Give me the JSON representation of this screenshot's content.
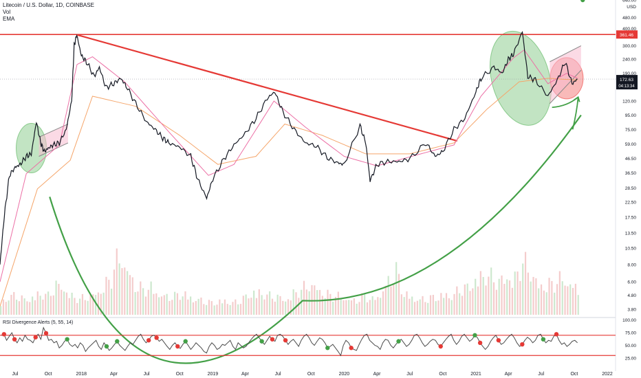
{
  "legend": {
    "title": "Litecoin / U.S. Dollar, 1D, COINBASE",
    "vol": "Vol",
    "ema": "EMA"
  },
  "rsi_title": "RSI Divergence Alerts (5, 55, 14)",
  "currency": "USD",
  "colors": {
    "price": "#131722",
    "resistance": "#e53935",
    "trendline": "#e53935",
    "cup_arc": "#43a047",
    "ema_fast": "#ec6fa5",
    "ema_slow": "#f5a56a",
    "volume": "#f3c7c7",
    "price_badge": "#131722",
    "resistance_badge": "#e53935"
  },
  "chart_data": [
    {
      "type": "line",
      "scale": "log",
      "yticks": [
        "640.00",
        "480.00",
        "400.00",
        "300.00",
        "240.00",
        "190.00",
        "150.00",
        "120.00",
        "95.00",
        "75.00",
        "59.00",
        "46.50",
        "36.50",
        "28.50",
        "22.50",
        "17.50",
        "13.50",
        "10.50",
        "8.00",
        "6.00",
        "4.80",
        "3.80"
      ],
      "ylim": [
        3.4,
        640
      ],
      "xticks": [
        "Jul",
        "Oct",
        "2018",
        "Apr",
        "Jul",
        "Oct",
        "2019",
        "Apr",
        "Jul",
        "Oct",
        "2020",
        "Apr",
        "Jul",
        "Oct",
        "2021",
        "Apr",
        "Jul",
        "Oct",
        "2022"
      ],
      "xlim": [
        "2017-05-20",
        "2022-01-20"
      ],
      "price_series": {
        "x": [
          "2017-05-20",
          "2017-06-01",
          "2017-06-15",
          "2017-07-01",
          "2017-07-15",
          "2017-08-01",
          "2017-08-15",
          "2017-08-29",
          "2017-09-10",
          "2017-09-20",
          "2017-10-01",
          "2017-10-15",
          "2017-11-01",
          "2017-11-20",
          "2017-12-05",
          "2017-12-12",
          "2017-12-19",
          "2018-01-01",
          "2018-01-15",
          "2018-02-06",
          "2018-02-20",
          "2018-03-10",
          "2018-04-01",
          "2018-04-20",
          "2018-05-05",
          "2018-06-01",
          "2018-07-01",
          "2018-07-25",
          "2018-08-15",
          "2018-09-01",
          "2018-10-01",
          "2018-11-01",
          "2018-11-20",
          "2018-12-15",
          "2019-01-01",
          "2019-02-01",
          "2019-03-01",
          "2019-04-01",
          "2019-05-01",
          "2019-06-01",
          "2019-06-22",
          "2019-07-15",
          "2019-08-15",
          "2019-09-15",
          "2019-10-15",
          "2019-11-15",
          "2019-12-15",
          "2020-01-01",
          "2020-02-14",
          "2020-03-01",
          "2020-03-13",
          "2020-04-01",
          "2020-05-01",
          "2020-06-01",
          "2020-07-01",
          "2020-08-15",
          "2020-09-10",
          "2020-10-01",
          "2020-11-01",
          "2020-12-01",
          "2021-01-01",
          "2021-01-15",
          "2021-02-20",
          "2021-03-15",
          "2021-04-01",
          "2021-04-15",
          "2021-05-10",
          "2021-05-25",
          "2021-06-15",
          "2021-07-20",
          "2021-08-15",
          "2021-09-06",
          "2021-09-25",
          "2021-10-10"
        ],
        "y": [
          8,
          18,
          35,
          40,
          42,
          48,
          50,
          85,
          60,
          52,
          55,
          58,
          60,
          75,
          120,
          300,
          360,
          255,
          230,
          180,
          210,
          150,
          160,
          175,
          155,
          115,
          85,
          75,
          65,
          60,
          56,
          48,
          33,
          24,
          33,
          46,
          58,
          70,
          90,
          125,
          140,
          100,
          75,
          60,
          57,
          47,
          43,
          42,
          80,
          60,
          32,
          42,
          44,
          44,
          46,
          60,
          48,
          52,
          75,
          90,
          140,
          175,
          210,
          190,
          240,
          260,
          380,
          180,
          170,
          130,
          170,
          230,
          160,
          172.63
        ]
      },
      "ema_fast_series": {
        "x": [
          "2017-05-20",
          "2017-08-01",
          "2017-11-01",
          "2017-12-20",
          "2018-02-01",
          "2018-05-01",
          "2018-09-01",
          "2018-12-20",
          "2019-03-01",
          "2019-06-20",
          "2019-09-15",
          "2020-01-01",
          "2020-04-01",
          "2020-08-01",
          "2020-11-01",
          "2021-01-15",
          "2021-04-15",
          "2021-05-15",
          "2021-07-20",
          "2021-09-10",
          "2021-10-10"
        ],
        "y": [
          6,
          36,
          58,
          220,
          250,
          165,
          72,
          35,
          42,
          120,
          78,
          48,
          41,
          50,
          58,
          130,
          245,
          280,
          160,
          190,
          175
        ]
      },
      "ema_slow_series": {
        "x": [
          "2017-05-20",
          "2017-09-01",
          "2017-12-01",
          "2018-02-01",
          "2018-06-01",
          "2018-10-01",
          "2019-01-15",
          "2019-05-01",
          "2019-07-20",
          "2019-11-01",
          "2020-03-01",
          "2020-07-01",
          "2020-11-01",
          "2021-02-01",
          "2021-05-01",
          "2021-07-20",
          "2021-10-10"
        ],
        "y": [
          4,
          28,
          45,
          130,
          110,
          68,
          42,
          48,
          82,
          68,
          50,
          50,
          60,
          105,
          165,
          175,
          170
        ]
      },
      "horizontal_lines": [
        {
          "label": "361.46",
          "value": 361.46
        },
        {
          "label": "172.63",
          "value": 172.63
        }
      ],
      "price_time_label": "04:13:34",
      "trendlines": [
        {
          "from": [
            "2017-12-19",
            360
          ],
          "to": [
            "2020-11-10",
            62
          ]
        }
      ],
      "channels": [
        {
          "lower": [
            [
              "2017-09-05",
              48
            ],
            [
              "2017-11-25",
              60
            ]
          ],
          "upper": [
            [
              "2017-09-05",
              66
            ],
            [
              "2017-11-25",
              82
            ]
          ]
        },
        {
          "lower": [
            [
              "2021-07-25",
              115
            ],
            [
              "2021-10-20",
              200
            ]
          ],
          "upper": [
            [
              "2021-07-25",
              230
            ],
            [
              "2021-10-20",
              300
            ]
          ]
        }
      ],
      "ellipses": [
        {
          "center": [
            "2017-08-15",
            55
          ],
          "color": "green"
        },
        {
          "center": [
            "2021-05-05",
            175
          ],
          "color": "green"
        },
        {
          "center": [
            "2021-09-10",
            175
          ],
          "color": "red"
        }
      ],
      "volume": [
        0.2,
        0.3,
        0.3,
        0.25,
        0.3,
        0.35,
        0.3,
        0.5,
        0.45,
        0.3,
        0.25,
        0.3,
        0.35,
        0.45,
        0.6,
        1.0,
        0.75,
        0.5,
        0.4,
        0.45,
        0.35,
        0.3,
        0.3,
        0.35,
        0.3,
        0.25,
        0.2,
        0.2,
        0.25,
        0.2,
        0.2,
        0.3,
        0.4,
        0.35,
        0.3,
        0.3,
        0.25,
        0.35,
        0.4,
        0.5,
        0.45,
        0.35,
        0.3,
        0.3,
        0.25,
        0.25,
        0.3,
        0.25,
        0.35,
        0.55,
        0.7,
        0.35,
        0.3,
        0.25,
        0.25,
        0.3,
        0.35,
        0.3,
        0.4,
        0.45,
        0.6,
        0.65,
        0.6,
        0.55,
        0.65,
        0.6,
        0.85,
        0.7,
        0.5,
        0.5,
        0.5,
        0.6,
        0.5,
        0.45
      ]
    },
    {
      "type": "line",
      "title": "RSI Divergence Alerts (5, 55, 14)",
      "yticks": [
        "100.00",
        "75.00",
        "50.00",
        "25.00"
      ],
      "ylim": [
        10,
        105
      ],
      "levels": [
        70,
        30
      ],
      "rsi_values": [
        70,
        72,
        60,
        68,
        75,
        62,
        55,
        65,
        58,
        70,
        62,
        60,
        55,
        66,
        72,
        62,
        85,
        74,
        60,
        62,
        55,
        58,
        45,
        50,
        58,
        62,
        52,
        48,
        52,
        45,
        55,
        50,
        38,
        45,
        50,
        55,
        60,
        48,
        42,
        55,
        48,
        40,
        45,
        52,
        58,
        50,
        45,
        40,
        48,
        55,
        52,
        60,
        68,
        72,
        62,
        55,
        60,
        68,
        70,
        65,
        58,
        62,
        55,
        48,
        42,
        50,
        55,
        48,
        44,
        52,
        58,
        50,
        42,
        48,
        55,
        50,
        45,
        38,
        35,
        48,
        55,
        50,
        42,
        45,
        52,
        50,
        55,
        60,
        48,
        42,
        55,
        50,
        45,
        48,
        55,
        62,
        68,
        72,
        65,
        58,
        52,
        60,
        68,
        62,
        58,
        70,
        72,
        68,
        60,
        52,
        58,
        62,
        55,
        48,
        60,
        68,
        72,
        65,
        55,
        50,
        58,
        65,
        62,
        55,
        45,
        48,
        52,
        45,
        38,
        30,
        50,
        60,
        55,
        45,
        42,
        40,
        52,
        62,
        70,
        72,
        60,
        55,
        50,
        48,
        42,
        55,
        62,
        60,
        50,
        45,
        52,
        58,
        62,
        55,
        48,
        52,
        60,
        70,
        72,
        65,
        55,
        48,
        52,
        58,
        62,
        60,
        52,
        48,
        55,
        62,
        68,
        72,
        60,
        52,
        58,
        68,
        72,
        65,
        58,
        62,
        70,
        65,
        55,
        48,
        42,
        48,
        58,
        65,
        70,
        60,
        52,
        55,
        62,
        68,
        72,
        65,
        55,
        48,
        52,
        60,
        66,
        62,
        55,
        60,
        70,
        72,
        62,
        55,
        60,
        58,
        68,
        72,
        60,
        52,
        55,
        48,
        52,
        58,
        60,
        55
      ],
      "bearish_alerts": [
        1,
        5,
        13,
        17,
        56,
        59,
        67,
        103,
        108,
        133,
        167,
        182,
        189,
        198,
        211
      ],
      "bullish_alerts": [
        25,
        40,
        44,
        70,
        99,
        124,
        151,
        180,
        206,
        221
      ]
    }
  ]
}
